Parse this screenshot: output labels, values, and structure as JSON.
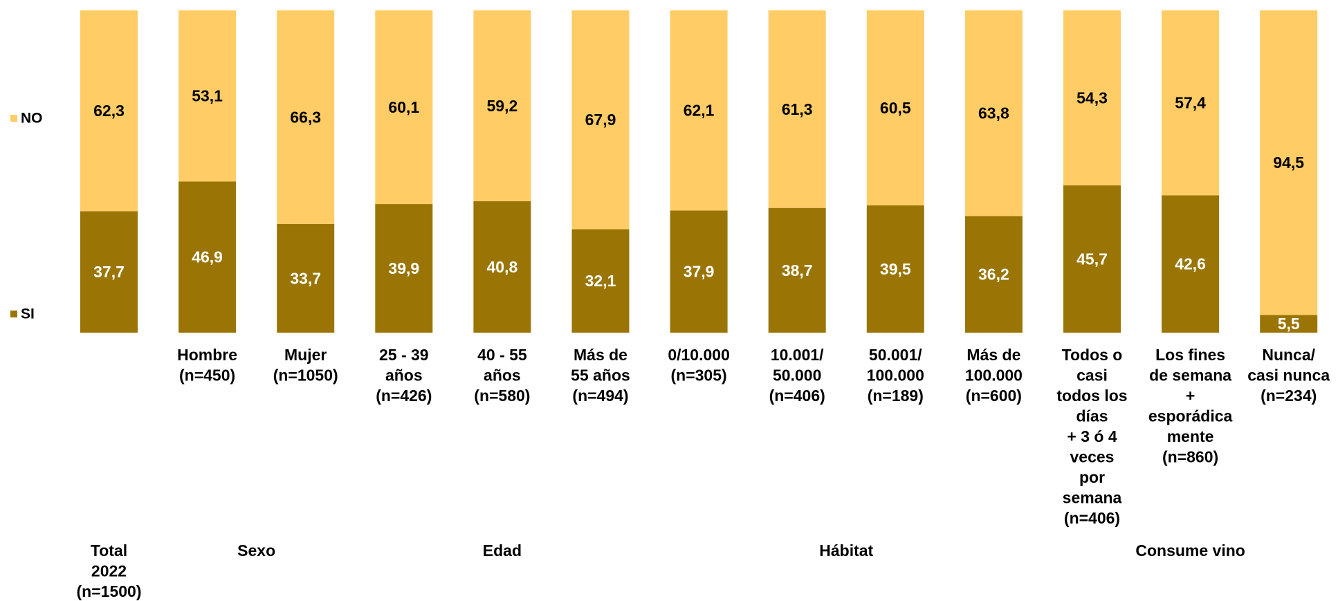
{
  "chart_data": {
    "type": "bar",
    "stacked": true,
    "percent_scale": true,
    "ylim": [
      0,
      100
    ],
    "grid": false,
    "legend_position": "left",
    "colors": {
      "SI": "#9A7505",
      "NO": "#FFCC66"
    },
    "categories": [
      "",
      "Hombre\n(n=450)",
      "Mujer\n(n=1050)",
      "25 - 39\naños\n(n=426)",
      "40 - 55\naños\n(n=580)",
      "Más de\n55 años\n(n=494)",
      "0/10.000\n(n=305)",
      "10.001/\n50.000\n(n=406)",
      "50.001/\n100.000\n(n=189)",
      "Más de\n100.000\n(n=600)",
      "Todos o\ncasi\ntodos los\ndías\n+ 3 ó 4\nveces\npor\nsemana\n(n=406)",
      "Los fines\nde semana\n+\nesporádica\nmente\n(n=860)",
      "Nunca/\ncasi nunca\n(n=234)"
    ],
    "series": [
      {
        "name": "SI",
        "values": [
          37.7,
          46.9,
          33.7,
          39.9,
          40.8,
          32.1,
          37.9,
          38.7,
          39.5,
          36.2,
          45.7,
          42.6,
          5.5
        ],
        "labels": [
          "37,7",
          "46,9",
          "33,7",
          "39,9",
          "40,8",
          "32,1",
          "37,9",
          "38,7",
          "39,5",
          "36,2",
          "45,7",
          "42,6",
          "5,5"
        ]
      },
      {
        "name": "NO",
        "values": [
          62.3,
          53.1,
          66.3,
          60.1,
          59.2,
          67.9,
          62.1,
          61.3,
          60.5,
          63.8,
          54.3,
          57.4,
          94.5
        ],
        "labels": [
          "62,3",
          "53,1",
          "66,3",
          "60,1",
          "59,2",
          "67,9",
          "62,1",
          "61,3",
          "60,5",
          "63,8",
          "54,3",
          "57,4",
          "94,5"
        ]
      }
    ],
    "groups": [
      {
        "label": "Total\n2022\n(n=1500)",
        "from": 0,
        "to": 0
      },
      {
        "label": "Sexo",
        "from": 1,
        "to": 2
      },
      {
        "label": "Edad",
        "from": 3,
        "to": 5
      },
      {
        "label": "Hábitat",
        "from": 6,
        "to": 9
      },
      {
        "label": "Consume vino",
        "from": 10,
        "to": 12
      }
    ]
  }
}
